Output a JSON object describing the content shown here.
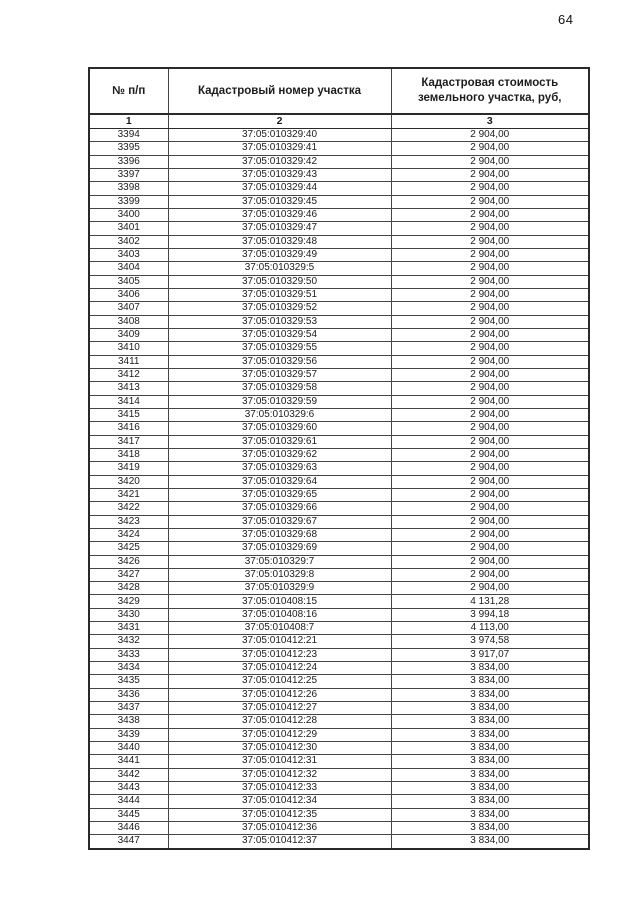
{
  "page": {
    "number": "64"
  },
  "table": {
    "headers": [
      "№ п/п",
      "Кадастровый номер участка",
      "Кадастровая стоимость земельного участка, руб,"
    ],
    "column_numbers": [
      "1",
      "2",
      "3"
    ],
    "rows": [
      [
        "3394",
        "37:05:010329:40",
        "2 904,00"
      ],
      [
        "3395",
        "37:05:010329:41",
        "2 904,00"
      ],
      [
        "3396",
        "37:05:010329:42",
        "2 904,00"
      ],
      [
        "3397",
        "37:05:010329:43",
        "2 904,00"
      ],
      [
        "3398",
        "37:05:010329:44",
        "2 904,00"
      ],
      [
        "3399",
        "37:05:010329:45",
        "2 904,00"
      ],
      [
        "3400",
        "37:05:010329:46",
        "2 904,00"
      ],
      [
        "3401",
        "37:05:010329:47",
        "2 904,00"
      ],
      [
        "3402",
        "37:05:010329:48",
        "2 904,00"
      ],
      [
        "3403",
        "37:05:010329:49",
        "2 904,00"
      ],
      [
        "3404",
        "37:05:010329:5",
        "2 904,00"
      ],
      [
        "3405",
        "37:05:010329:50",
        "2 904,00"
      ],
      [
        "3406",
        "37:05:010329:51",
        "2 904,00"
      ],
      [
        "3407",
        "37:05:010329:52",
        "2 904,00"
      ],
      [
        "3408",
        "37:05:010329:53",
        "2 904,00"
      ],
      [
        "3409",
        "37:05:010329:54",
        "2 904,00"
      ],
      [
        "3410",
        "37:05:010329:55",
        "2 904,00"
      ],
      [
        "3411",
        "37:05:010329:56",
        "2 904,00"
      ],
      [
        "3412",
        "37:05:010329:57",
        "2 904,00"
      ],
      [
        "3413",
        "37:05:010329:58",
        "2 904,00"
      ],
      [
        "3414",
        "37:05:010329:59",
        "2 904,00"
      ],
      [
        "3415",
        "37:05:010329:6",
        "2 904,00"
      ],
      [
        "3416",
        "37:05:010329:60",
        "2 904,00"
      ],
      [
        "3417",
        "37:05:010329:61",
        "2 904,00"
      ],
      [
        "3418",
        "37:05:010329:62",
        "2 904,00"
      ],
      [
        "3419",
        "37:05:010329:63",
        "2 904,00"
      ],
      [
        "3420",
        "37:05:010329:64",
        "2 904,00"
      ],
      [
        "3421",
        "37:05:010329:65",
        "2 904,00"
      ],
      [
        "3422",
        "37:05:010329:66",
        "2 904,00"
      ],
      [
        "3423",
        "37:05:010329:67",
        "2 904,00"
      ],
      [
        "3424",
        "37:05:010329:68",
        "2 904,00"
      ],
      [
        "3425",
        "37:05:010329:69",
        "2 904,00"
      ],
      [
        "3426",
        "37:05:010329:7",
        "2 904,00"
      ],
      [
        "3427",
        "37:05:010329:8",
        "2 904,00"
      ],
      [
        "3428",
        "37:05:010329:9",
        "2 904,00"
      ],
      [
        "3429",
        "37:05:010408:15",
        "4 131,28"
      ],
      [
        "3430",
        "37:05:010408:16",
        "3 994,18"
      ],
      [
        "3431",
        "37:05:010408:7",
        "4 113,00"
      ],
      [
        "3432",
        "37:05:010412:21",
        "3 974,58"
      ],
      [
        "3433",
        "37:05:010412:23",
        "3 917,07"
      ],
      [
        "3434",
        "37:05:010412:24",
        "3 834,00"
      ],
      [
        "3435",
        "37:05:010412:25",
        "3 834,00"
      ],
      [
        "3436",
        "37:05:010412:26",
        "3 834,00"
      ],
      [
        "3437",
        "37:05:010412:27",
        "3 834,00"
      ],
      [
        "3438",
        "37:05:010412:28",
        "3 834,00"
      ],
      [
        "3439",
        "37:05:010412:29",
        "3 834,00"
      ],
      [
        "3440",
        "37:05:010412:30",
        "3 834,00"
      ],
      [
        "3441",
        "37:05:010412:31",
        "3 834,00"
      ],
      [
        "3442",
        "37:05:010412:32",
        "3 834,00"
      ],
      [
        "3443",
        "37:05:010412:33",
        "3 834,00"
      ],
      [
        "3444",
        "37:05:010412:34",
        "3 834,00"
      ],
      [
        "3445",
        "37:05:010412:35",
        "3 834,00"
      ],
      [
        "3446",
        "37:05:010412:36",
        "3 834,00"
      ],
      [
        "3447",
        "37:05:010412:37",
        "3 834,00"
      ]
    ]
  }
}
